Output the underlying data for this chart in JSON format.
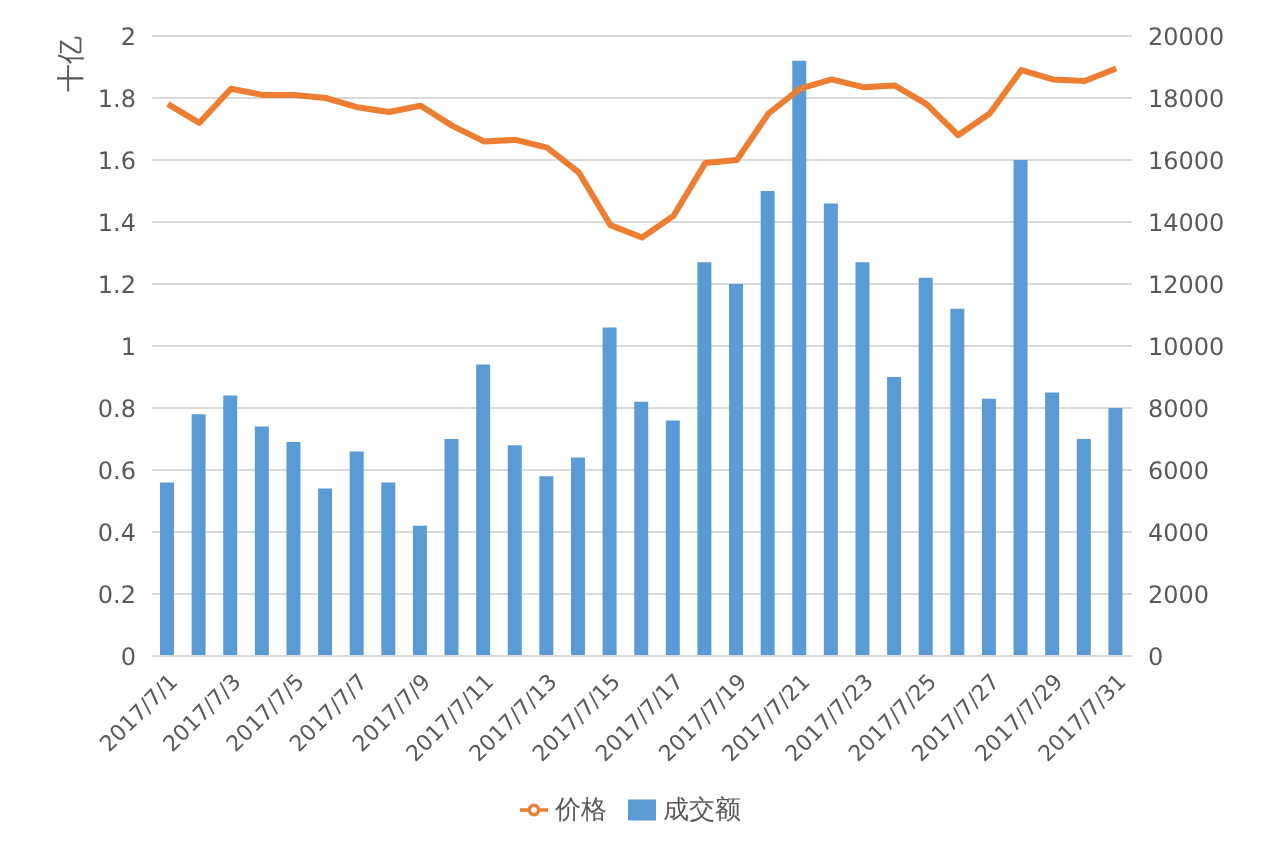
{
  "chart_data": {
    "type": "bar",
    "ylabel": "十亿",
    "categories": [
      "2017/7/1",
      null,
      "2017/7/3",
      null,
      "2017/7/5",
      null,
      "2017/7/7",
      null,
      "2017/7/9",
      null,
      "2017/7/11",
      null,
      "2017/7/13",
      null,
      "2017/7/15",
      null,
      "2017/7/17",
      null,
      "2017/7/19",
      null,
      "2017/7/21",
      null,
      "2017/7/23",
      null,
      "2017/7/25",
      null,
      "2017/7/27",
      null,
      "2017/7/29",
      null,
      "2017/7/31"
    ],
    "series": [
      {
        "name": "成交额",
        "color": "#5b9bd5",
        "values": [
          0.56,
          0.78,
          0.84,
          0.74,
          0.69,
          0.54,
          0.66,
          0.56,
          0.42,
          0.7,
          0.94,
          0.68,
          0.58,
          0.64,
          1.06,
          0.82,
          0.76,
          1.27,
          1.2,
          1.5,
          1.92,
          1.46,
          1.27,
          0.9,
          1.22,
          1.12,
          0.83,
          1.6,
          0.85,
          0.7,
          0.8
        ]
      },
      {
        "name": "价格",
        "type": "line",
        "axis": "y2",
        "color": "#ed7d31",
        "values": [
          17800,
          17200,
          18300,
          18100,
          18100,
          18000,
          17700,
          17550,
          17750,
          17100,
          16600,
          16650,
          16400,
          15600,
          13900,
          13500,
          14200,
          15900,
          16000,
          17500,
          18300,
          18600,
          18350,
          18400,
          17800,
          16800,
          17500,
          18900,
          18600,
          18550,
          18950
        ]
      }
    ],
    "ylim": [
      0,
      2
    ],
    "yticks": [
      0,
      0.2,
      0.4,
      0.6,
      0.8,
      1,
      1.2,
      1.4,
      1.6,
      1.8,
      2
    ],
    "y2lim": [
      0,
      20000
    ],
    "y2ticks": [
      0,
      2000,
      4000,
      6000,
      8000,
      10000,
      12000,
      14000,
      16000,
      18000,
      20000
    ],
    "grid": "y",
    "legend": "bottom",
    "marker": "none",
    "line_style": "solid"
  }
}
